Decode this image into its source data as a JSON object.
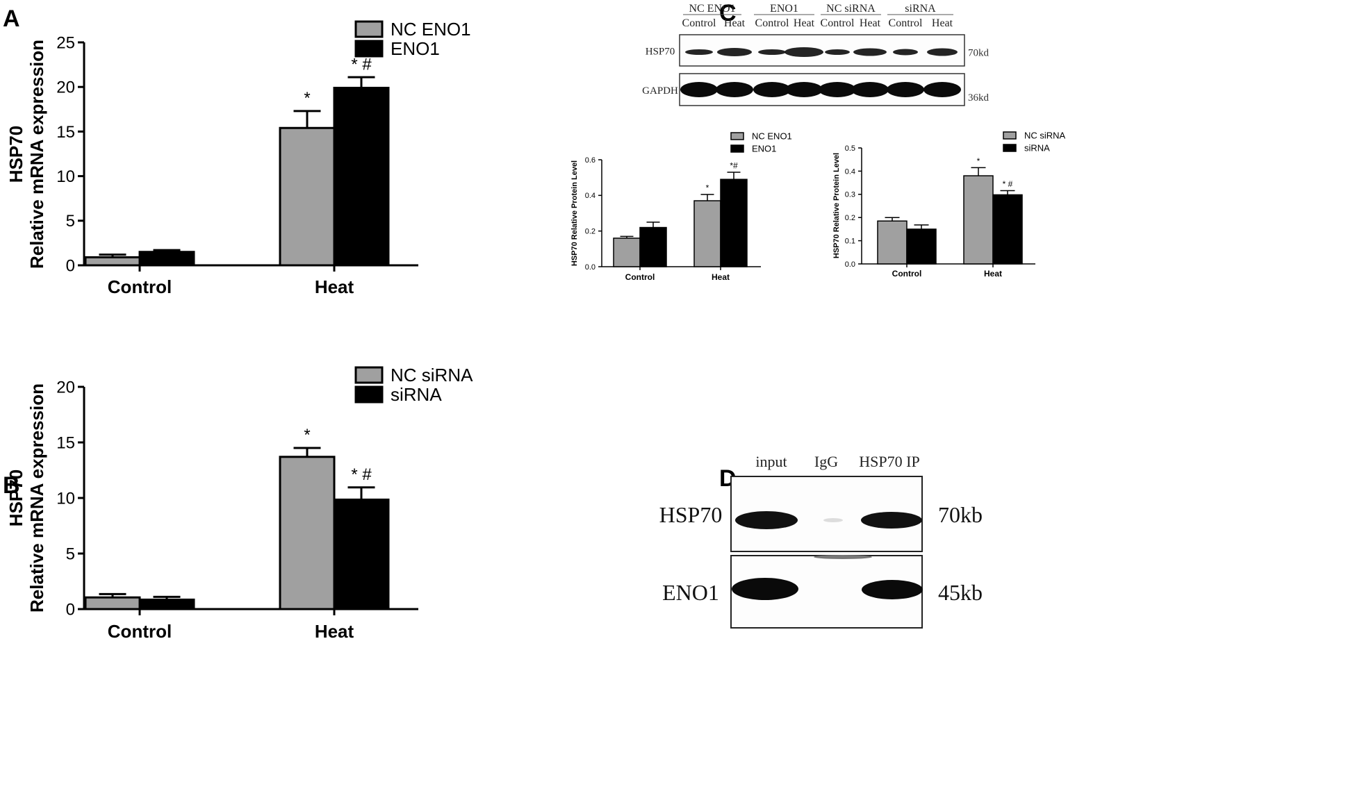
{
  "panel_labels": {
    "a": "A",
    "b": "B",
    "c": "C",
    "d": "D"
  },
  "chart_data": [
    {
      "panel": "A",
      "type": "bar",
      "title": "",
      "ylabel_top": "HSP70",
      "ylabel": "Relative mRNA expression",
      "xlabel": "",
      "categories": [
        "Control",
        "Heat"
      ],
      "ylim": [
        0,
        25
      ],
      "yticks": [
        0,
        5,
        10,
        15,
        20,
        25
      ],
      "legend_position": "top-right",
      "series": [
        {
          "name": "NC ENO1",
          "color": "#a0a0a0",
          "values": [
            0.9,
            15.4
          ],
          "errors": [
            0.3,
            1.9
          ],
          "annotations": [
            "",
            "*"
          ]
        },
        {
          "name": "ENO1",
          "color": "#000000",
          "values": [
            1.5,
            19.9
          ],
          "errors": [
            0.2,
            1.2
          ],
          "annotations": [
            "",
            "* #"
          ]
        }
      ]
    },
    {
      "panel": "B",
      "type": "bar",
      "title": "",
      "ylabel_top": "HSP70",
      "ylabel": "Relative mRNA expression",
      "xlabel": "",
      "categories": [
        "Control",
        "Heat"
      ],
      "ylim": [
        0,
        20
      ],
      "yticks": [
        0,
        5,
        10,
        15,
        20
      ],
      "legend_position": "top-right",
      "series": [
        {
          "name": "NC siRNA",
          "color": "#a0a0a0",
          "values": [
            1.05,
            13.7
          ],
          "errors": [
            0.3,
            0.8
          ],
          "annotations": [
            "",
            "*"
          ]
        },
        {
          "name": "siRNA",
          "color": "#000000",
          "values": [
            0.85,
            9.85
          ],
          "errors": [
            0.25,
            1.1
          ],
          "annotations": [
            "",
            "* #"
          ]
        }
      ]
    },
    {
      "panel": "C-left",
      "type": "bar",
      "title": "",
      "ylabel": "HSP70 Relative Protein Level",
      "xlabel": "",
      "categories": [
        "Control",
        "Heat"
      ],
      "ylim": [
        0,
        0.6
      ],
      "yticks": [
        "0.0",
        "0.2",
        "0.4",
        "0.6"
      ],
      "legend_position": "top-right",
      "series": [
        {
          "name": "NC ENO1",
          "color": "#a0a0a0",
          "values": [
            0.16,
            0.37
          ],
          "errors": [
            0.01,
            0.035
          ],
          "annotations": [
            "",
            "*"
          ]
        },
        {
          "name": "ENO1",
          "color": "#000000",
          "values": [
            0.22,
            0.49
          ],
          "errors": [
            0.03,
            0.04
          ],
          "annotations": [
            "",
            "*#"
          ]
        }
      ]
    },
    {
      "panel": "C-right",
      "type": "bar",
      "title": "",
      "ylabel": "HSP70 Relative Protein Level",
      "xlabel": "",
      "categories": [
        "Control",
        "Heat"
      ],
      "ylim": [
        0,
        0.5
      ],
      "yticks": [
        "0.0",
        "0.1",
        "0.2",
        "0.3",
        "0.4",
        "0.5"
      ],
      "legend_position": "top-right",
      "series": [
        {
          "name": "NC siRNA",
          "color": "#a0a0a0",
          "values": [
            0.185,
            0.38
          ],
          "errors": [
            0.015,
            0.035
          ],
          "annotations": [
            "",
            "*"
          ]
        },
        {
          "name": "siRNA",
          "color": "#000000",
          "values": [
            0.15,
            0.298
          ],
          "errors": [
            0.018,
            0.018
          ],
          "annotations": [
            "",
            "* #"
          ]
        }
      ]
    }
  ],
  "blot_c": {
    "groups": [
      "NC ENO1",
      "ENO1",
      "NC siRNA",
      "siRNA"
    ],
    "lanes": [
      "Control",
      "Heat",
      "Control",
      "Heat",
      "Control",
      "Heat",
      "Control",
      "Heat"
    ],
    "rows": [
      {
        "label": "HSP70",
        "size": "70kd"
      },
      {
        "label": "GAPDH",
        "size": "36kd"
      }
    ]
  },
  "blot_d": {
    "lanes": [
      "input",
      "IgG",
      "HSP70 IP"
    ],
    "rows": [
      {
        "label": "HSP70",
        "size": "70kb"
      },
      {
        "label": "ENO1",
        "size": "45kb"
      }
    ]
  }
}
